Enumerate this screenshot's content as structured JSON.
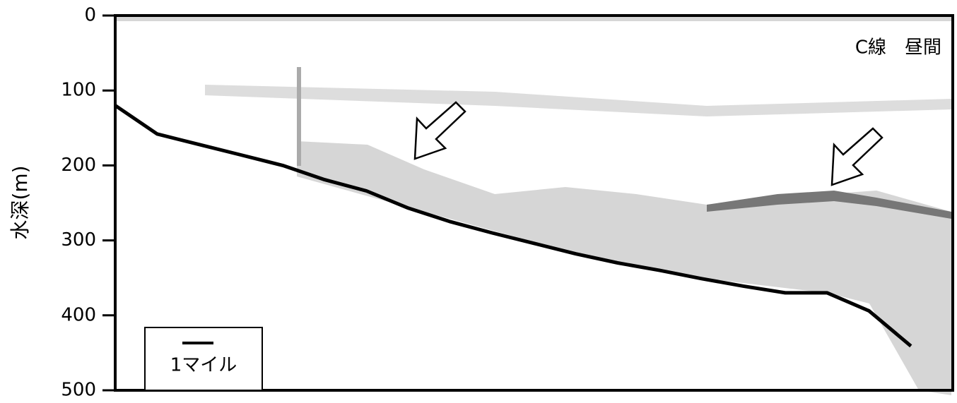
{
  "chart_data": {
    "type": "line",
    "y_label": "水深(m)",
    "annotation": "C線　昼間",
    "scale_label": "1マイル",
    "ylim": [
      0,
      500
    ],
    "yticks": [
      0,
      100,
      200,
      300,
      400,
      500
    ],
    "y_inverted": true,
    "categories": [
      null,
      null,
      null,
      null,
      null,
      null,
      null,
      null,
      null,
      null,
      null,
      null,
      null,
      null,
      null,
      null,
      null,
      null,
      null,
      null,
      null
    ],
    "color": "#000000",
    "values": [
      120,
      158,
      172,
      186,
      200,
      219,
      234,
      257,
      275,
      290,
      304,
      318,
      330,
      340,
      351,
      361,
      370,
      370,
      394,
      441,
      null
    ]
  }
}
